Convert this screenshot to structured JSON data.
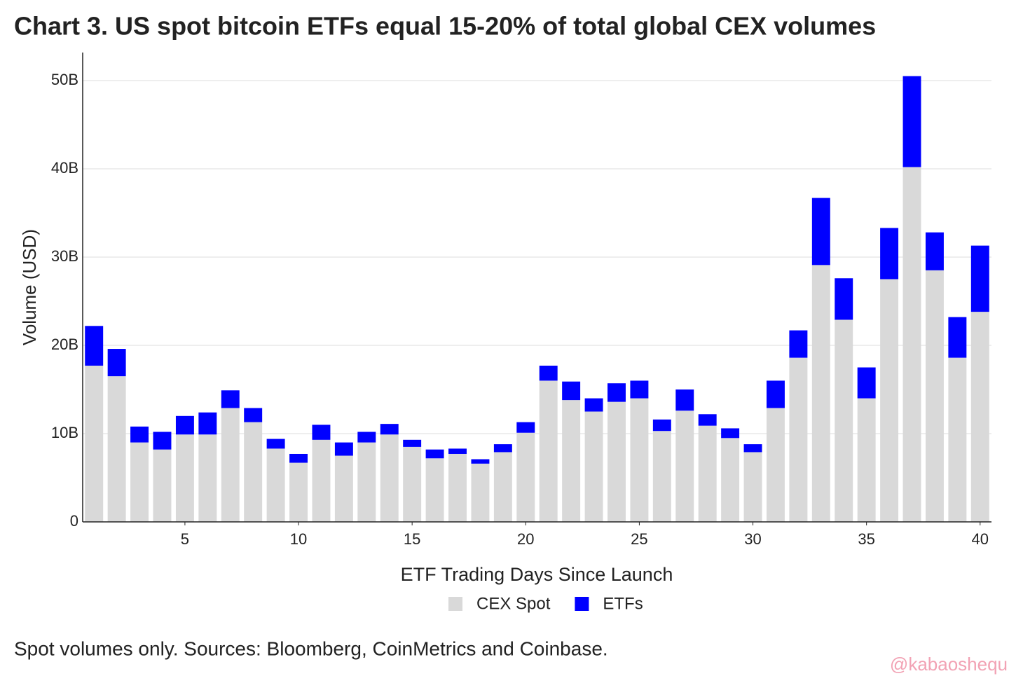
{
  "chart_data": {
    "type": "stacked_bar",
    "title": "Chart 3. US spot bitcoin ETFs equal 15-20% of total global CEX volumes",
    "x_label": "ETF Trading Days Since Launch",
    "y_label": "Volume (USD)",
    "footnote": "Spot volumes only. Sources: Bloomberg, CoinMetrics and Coinbase.",
    "watermark": "@kabaoshequ",
    "x": [
      1,
      2,
      3,
      4,
      5,
      6,
      7,
      8,
      9,
      10,
      11,
      12,
      13,
      14,
      15,
      16,
      17,
      18,
      19,
      20,
      21,
      22,
      23,
      24,
      25,
      26,
      27,
      28,
      29,
      30,
      31,
      32,
      33,
      34,
      35,
      36,
      37,
      38,
      39,
      40
    ],
    "series": [
      {
        "name": "CEX Spot",
        "color": "#d9d9d9",
        "values": [
          17.7,
          16.5,
          9.0,
          8.2,
          9.9,
          9.9,
          12.9,
          11.3,
          8.3,
          6.7,
          9.3,
          7.5,
          9.0,
          9.9,
          8.5,
          7.2,
          7.7,
          6.6,
          7.9,
          10.1,
          16.0,
          13.8,
          12.5,
          13.6,
          14.0,
          10.3,
          12.6,
          10.9,
          9.5,
          7.9,
          12.9,
          18.6,
          29.1,
          22.9,
          14.0,
          27.5,
          40.2,
          28.5,
          18.6,
          23.8
        ]
      },
      {
        "name": "ETFs",
        "color": "#0000ff",
        "values": [
          4.5,
          3.1,
          1.8,
          2.0,
          2.1,
          2.5,
          2.0,
          1.6,
          1.1,
          1.0,
          1.7,
          1.5,
          1.2,
          1.2,
          0.8,
          1.0,
          0.6,
          0.5,
          0.9,
          1.2,
          1.7,
          2.1,
          1.5,
          2.1,
          2.0,
          1.3,
          2.4,
          1.3,
          1.1,
          0.9,
          3.1,
          3.1,
          7.6,
          4.7,
          3.5,
          5.8,
          10.3,
          4.3,
          4.6,
          7.5
        ]
      }
    ],
    "xlim": [
      0.5,
      40.5
    ],
    "xticks": [
      5,
      10,
      15,
      20,
      25,
      30,
      35,
      40
    ],
    "ylim": [
      0,
      53
    ],
    "yticks": [
      0,
      {
        "value": 10,
        "label": "10B"
      },
      {
        "value": 20,
        "label": "20B"
      },
      {
        "value": 30,
        "label": "30B"
      },
      {
        "value": 40,
        "label": "40B"
      },
      {
        "value": 50,
        "label": "50B"
      }
    ],
    "grid": true
  }
}
